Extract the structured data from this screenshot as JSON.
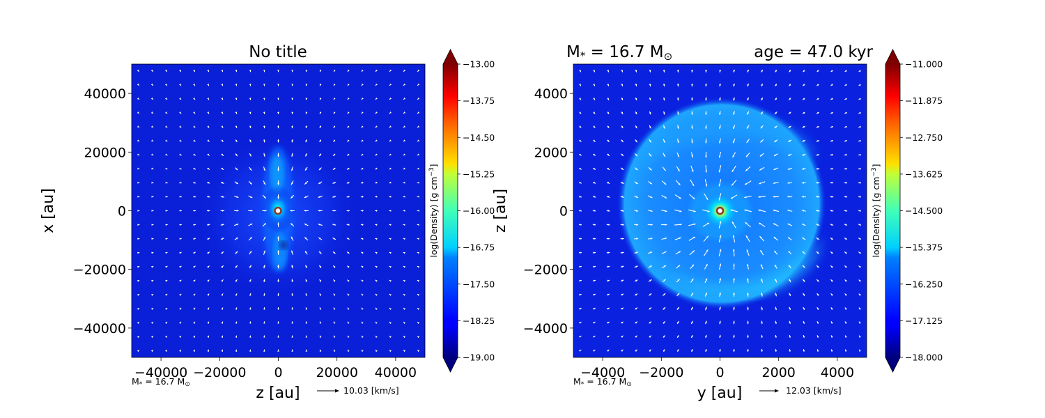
{
  "chart_data": [
    {
      "type": "heatmap",
      "title": "No title",
      "xlabel": "z [au]",
      "ylabel": "x [au]",
      "xlim": [
        -50000,
        50000
      ],
      "ylim": [
        -50000,
        50000
      ],
      "xticks": [
        "−40000",
        "−20000",
        "0",
        "20000",
        "40000"
      ],
      "yticks": [
        "40000",
        "20000",
        "0",
        "−20000",
        "−40000"
      ],
      "xtick_values": [
        -40000,
        -20000,
        0,
        20000,
        40000
      ],
      "ytick_values": [
        40000,
        20000,
        0,
        -20000,
        -40000
      ],
      "colorbar": {
        "label": "log(Density) [g cm",
        "label_exp": "−3",
        "label_end": "]",
        "range": [
          -19.0,
          -13.0
        ],
        "ticks": [
          "−13.00",
          "−13.75",
          "−14.50",
          "−15.25",
          "−16.00",
          "−16.75",
          "−17.50",
          "−18.25",
          "−19.00"
        ]
      },
      "star_position": [
        0,
        0
      ],
      "mass_note_prefix": "M",
      "mass_note_sub": "*",
      "mass_note_value": " = 16.7 M",
      "mass_note_sun": "⊙",
      "velocity_key": "10.03 [km/s]"
    },
    {
      "type": "heatmap",
      "title_left_prefix": "M",
      "title_left_sub": "*",
      "title_left_value": " = 16.7 M",
      "title_left_sun": "⊙",
      "title_right": "age = 47.0 kyr",
      "xlabel": "y [au]",
      "ylabel": "z [au]",
      "xlim": [
        -5000,
        5000
      ],
      "ylim": [
        -5000,
        5000
      ],
      "xticks": [
        "−4000",
        "−2000",
        "0",
        "2000",
        "4000"
      ],
      "yticks": [
        "4000",
        "2000",
        "0",
        "−2000",
        "−4000"
      ],
      "xtick_values": [
        -4000,
        -2000,
        0,
        2000,
        4000
      ],
      "ytick_values": [
        4000,
        2000,
        0,
        -2000,
        -4000
      ],
      "colorbar": {
        "label": "log(Density) [g cm",
        "label_exp": "−3",
        "label_end": "]",
        "range": [
          -18.0,
          -11.0
        ],
        "ticks": [
          "−11.000",
          "−11.875",
          "−12.750",
          "−13.625",
          "−14.500",
          "−15.375",
          "−16.250",
          "−17.125",
          "−18.000"
        ]
      },
      "star_position": [
        0,
        0
      ],
      "mass_note_prefix": "M",
      "mass_note_sub": "*",
      "mass_note_value": " = 16.7 M",
      "mass_note_sun": "⊙",
      "velocity_key": "12.03 [km/s]"
    }
  ],
  "colors": {
    "background_density": "#0a1fd8",
    "star_edge": "#8b3a2a",
    "vector_color": "#ffffff"
  }
}
